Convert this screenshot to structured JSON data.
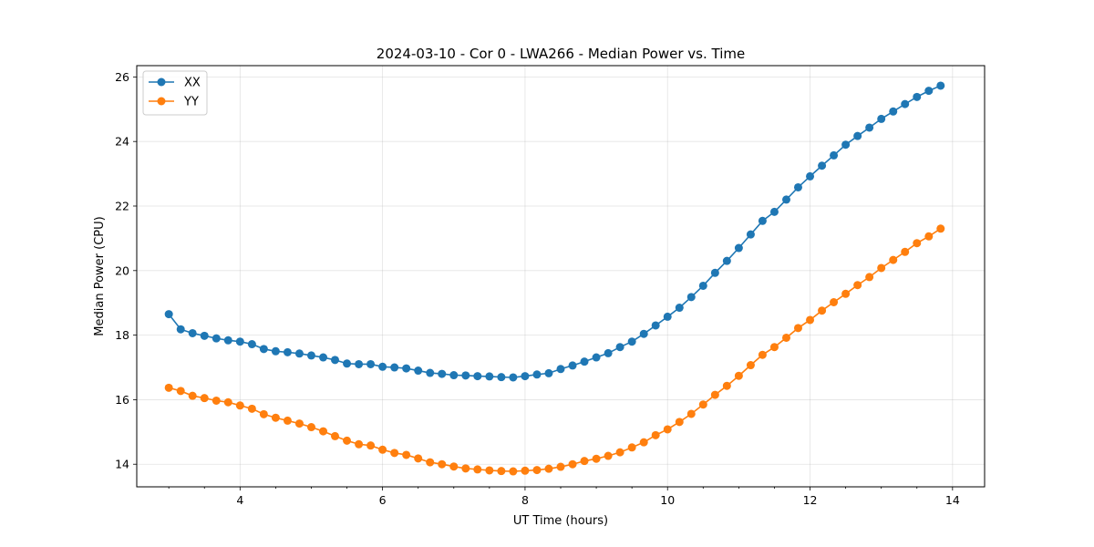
{
  "chart_data": {
    "type": "line",
    "title": "2024-03-10 - Cor 0 - LWA266 - Median Power vs. Time",
    "xlabel": "UT Time (hours)",
    "ylabel": "Median Power (CPU)",
    "xlim": [
      2.55,
      14.45
    ],
    "ylim": [
      13.3,
      26.35
    ],
    "xticks": [
      4,
      6,
      8,
      10,
      12,
      14
    ],
    "xtick_labels": [
      "4",
      "6",
      "8",
      "10",
      "12",
      "14"
    ],
    "xminor_step": 0.5,
    "yticks": [
      14,
      16,
      18,
      20,
      22,
      24,
      26
    ],
    "ytick_labels": [
      "14",
      "16",
      "18",
      "20",
      "22",
      "24",
      "26"
    ],
    "grid": true,
    "legend_position": "top-left",
    "x": [
      3.0,
      3.167,
      3.333,
      3.5,
      3.667,
      3.833,
      4.0,
      4.167,
      4.333,
      4.5,
      4.667,
      4.833,
      5.0,
      5.167,
      5.333,
      5.5,
      5.667,
      5.833,
      6.0,
      6.167,
      6.333,
      6.5,
      6.667,
      6.833,
      7.0,
      7.167,
      7.333,
      7.5,
      7.667,
      7.833,
      8.0,
      8.167,
      8.333,
      8.5,
      8.667,
      8.833,
      9.0,
      9.167,
      9.333,
      9.5,
      9.667,
      9.833,
      10.0,
      10.167,
      10.333,
      10.5,
      10.667,
      10.833,
      11.0,
      11.167,
      11.333,
      11.5,
      11.667,
      11.833,
      12.0,
      12.167,
      12.333,
      12.5,
      12.667,
      12.833,
      13.0,
      13.167,
      13.333,
      13.5,
      13.667,
      13.833
    ],
    "series": [
      {
        "name": "XX",
        "color": "#1f77b4",
        "values": [
          18.65,
          18.18,
          18.06,
          17.98,
          17.9,
          17.84,
          17.8,
          17.72,
          17.57,
          17.5,
          17.47,
          17.43,
          17.37,
          17.31,
          17.23,
          17.12,
          17.1,
          17.1,
          17.02,
          17.0,
          16.97,
          16.9,
          16.83,
          16.8,
          16.76,
          16.75,
          16.73,
          16.72,
          16.7,
          16.69,
          16.73,
          16.78,
          16.82,
          16.95,
          17.06,
          17.18,
          17.31,
          17.44,
          17.63,
          17.8,
          18.04,
          18.3,
          18.57,
          18.85,
          19.18,
          19.53,
          19.93,
          20.3,
          20.7,
          21.12,
          21.54,
          21.82,
          22.2,
          22.58,
          22.92,
          23.25,
          23.57,
          23.9,
          24.17,
          24.43,
          24.7,
          24.93,
          25.16,
          25.38,
          25.57,
          25.73
        ]
      },
      {
        "name": "YY",
        "color": "#ff7f0e",
        "values": [
          16.37,
          16.27,
          16.12,
          16.05,
          15.97,
          15.92,
          15.82,
          15.72,
          15.55,
          15.44,
          15.35,
          15.26,
          15.15,
          15.02,
          14.87,
          14.73,
          14.62,
          14.58,
          14.45,
          14.35,
          14.29,
          14.18,
          14.06,
          14.0,
          13.93,
          13.87,
          13.84,
          13.81,
          13.79,
          13.78,
          13.8,
          13.82,
          13.86,
          13.92,
          14.0,
          14.1,
          14.17,
          14.26,
          14.37,
          14.52,
          14.68,
          14.9,
          15.08,
          15.31,
          15.56,
          15.85,
          16.15,
          16.43,
          16.74,
          17.07,
          17.39,
          17.63,
          17.92,
          18.22,
          18.47,
          18.76,
          19.02,
          19.28,
          19.55,
          19.8,
          20.08,
          20.33,
          20.58,
          20.85,
          21.06,
          21.3
        ]
      }
    ]
  }
}
